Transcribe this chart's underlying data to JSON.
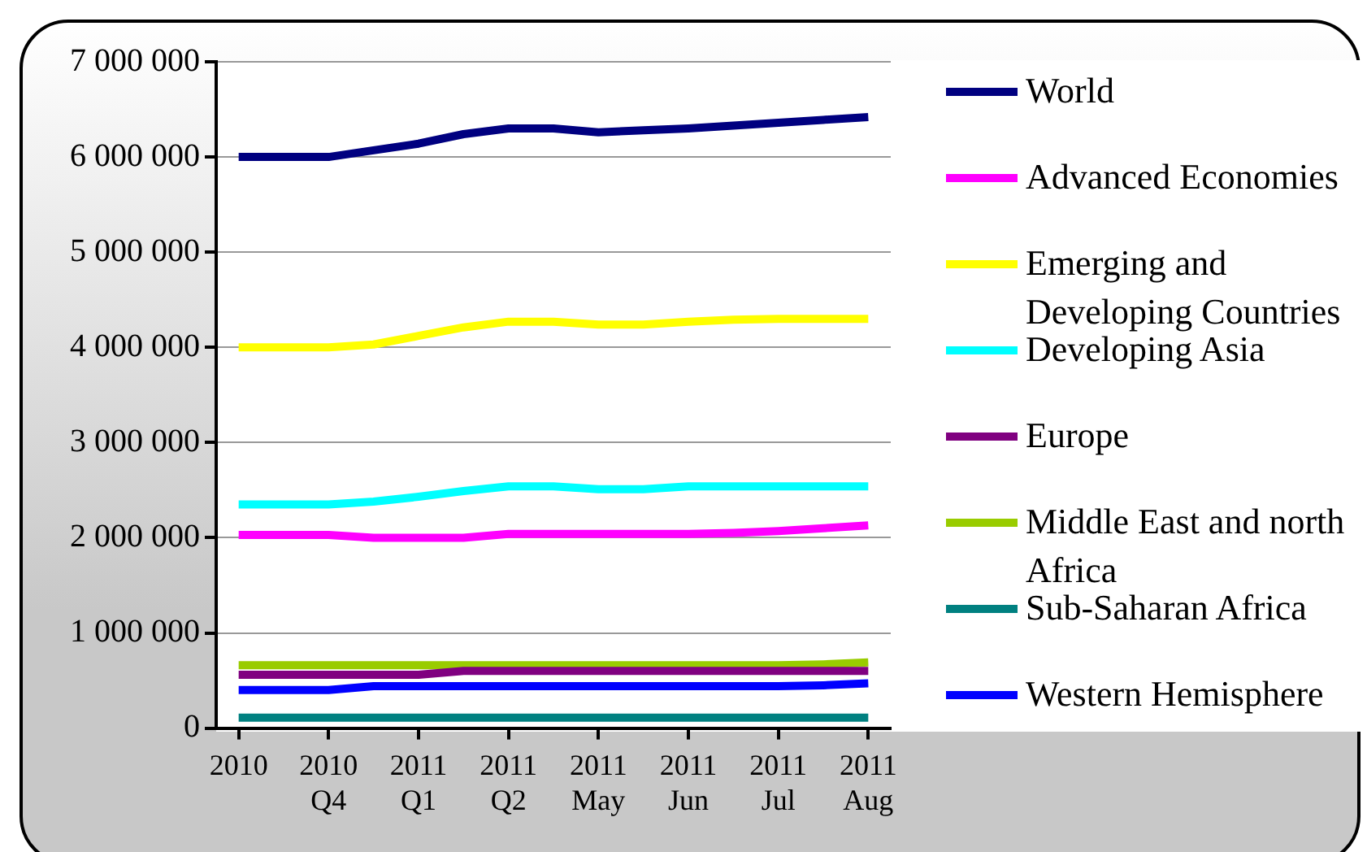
{
  "chart_data": {
    "type": "line",
    "categories": [
      "2010",
      null,
      "2010 Q4",
      null,
      "2011 Q1",
      null,
      "2011 Q2",
      null,
      "2011 May",
      null,
      "2011 Jun",
      null,
      "2011 Jul",
      null,
      "2011 Aug"
    ],
    "series": [
      {
        "name": "World",
        "color": "#000080",
        "values": [
          6000000,
          6000000,
          6000000,
          6070000,
          6140000,
          6240000,
          6300000,
          6300000,
          6260000,
          6280000,
          6300000,
          6330000,
          6360000,
          6390000,
          6420000
        ]
      },
      {
        "name": "Advanced Economies",
        "color": "#ff00ff",
        "values": [
          2030000,
          2030000,
          2030000,
          2000000,
          2000000,
          2000000,
          2040000,
          2040000,
          2040000,
          2040000,
          2040000,
          2050000,
          2070000,
          2100000,
          2130000
        ]
      },
      {
        "name": "Emerging and Developing Countries",
        "color": "#ffff00",
        "values": [
          4000000,
          4000000,
          4000000,
          4030000,
          4120000,
          4210000,
          4270000,
          4270000,
          4240000,
          4240000,
          4270000,
          4290000,
          4300000,
          4300000,
          4300000
        ]
      },
      {
        "name": "Developing Asia",
        "color": "#00ffff",
        "values": [
          2350000,
          2350000,
          2350000,
          2380000,
          2430000,
          2490000,
          2540000,
          2540000,
          2510000,
          2510000,
          2540000,
          2540000,
          2540000,
          2540000,
          2540000
        ]
      },
      {
        "name": "Europe",
        "color": "#800080",
        "values": [
          560000,
          560000,
          560000,
          560000,
          560000,
          600000,
          600000,
          600000,
          600000,
          600000,
          600000,
          600000,
          600000,
          600000,
          600000
        ]
      },
      {
        "name": "Middle East and north Africa",
        "color": "#99cc00",
        "values": [
          660000,
          660000,
          660000,
          660000,
          660000,
          660000,
          660000,
          660000,
          660000,
          660000,
          660000,
          660000,
          660000,
          670000,
          690000
        ]
      },
      {
        "name": "Sub-Saharan Africa",
        "color": "#008080",
        "values": [
          110000,
          110000,
          110000,
          110000,
          110000,
          110000,
          110000,
          110000,
          110000,
          110000,
          110000,
          110000,
          110000,
          110000,
          110000
        ]
      },
      {
        "name": "Western Hemisphere",
        "color": "#0000ff",
        "values": [
          400000,
          400000,
          400000,
          440000,
          440000,
          440000,
          440000,
          440000,
          440000,
          440000,
          440000,
          440000,
          440000,
          450000,
          470000
        ]
      }
    ],
    "ylim": [
      0,
      7000000
    ],
    "yticks": [
      {
        "value": 0,
        "label": "0"
      },
      {
        "value": 1000000,
        "label": "1 000 000"
      },
      {
        "value": 2000000,
        "label": "2 000 000"
      },
      {
        "value": 3000000,
        "label": "3 000 000"
      },
      {
        "value": 4000000,
        "label": "4 000 000"
      },
      {
        "value": 5000000,
        "label": "5 000 000"
      },
      {
        "value": 6000000,
        "label": "6 000 000"
      },
      {
        "value": 7000000,
        "label": "7 000 000"
      }
    ],
    "grid": "y",
    "legend": "right",
    "marker": "none",
    "line_style": "solid"
  }
}
